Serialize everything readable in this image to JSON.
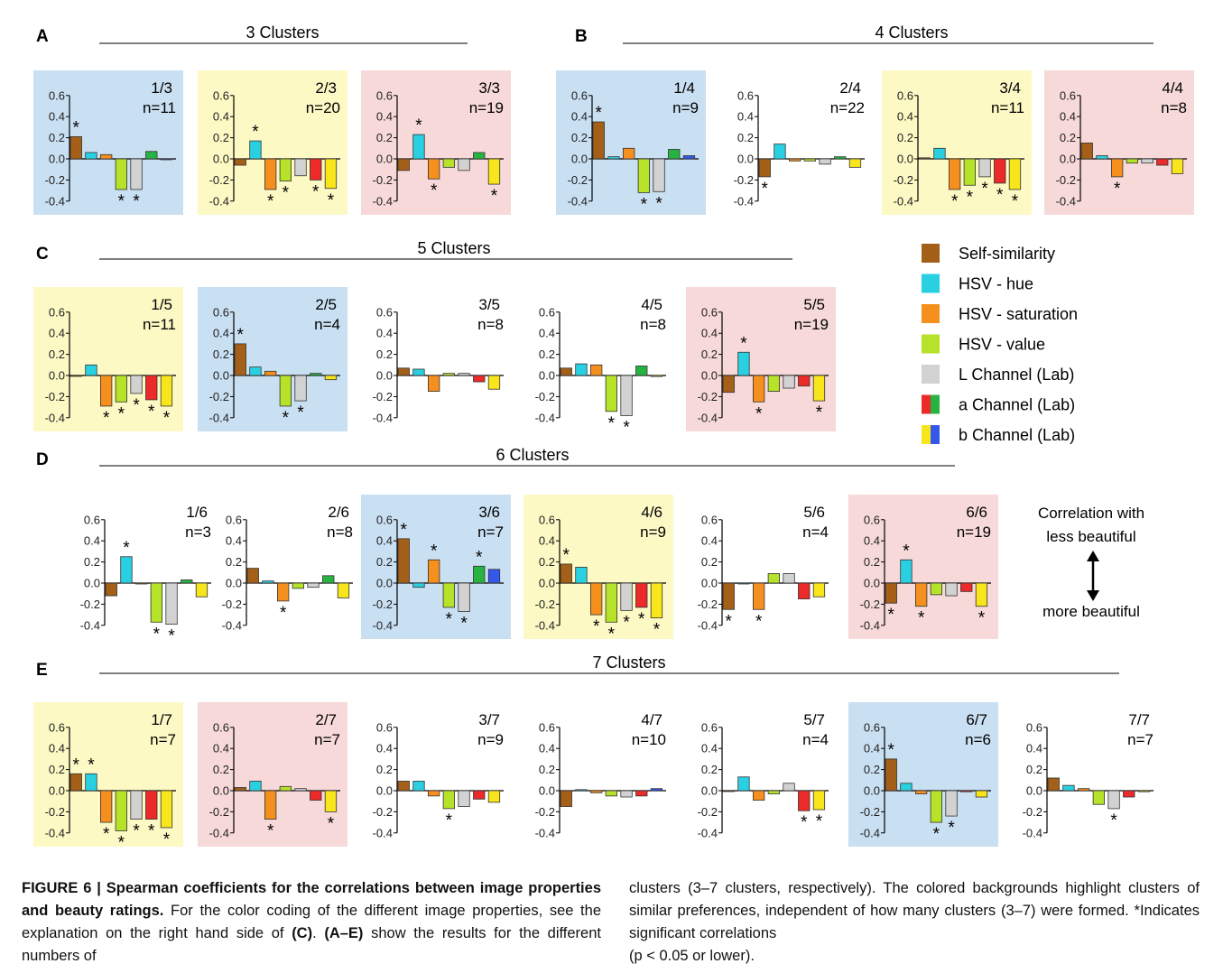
{
  "series_legend": [
    {
      "label": "Self-similarity",
      "colors": [
        "#a45f18"
      ]
    },
    {
      "label": "HSV - hue",
      "colors": [
        "#29d0e2"
      ]
    },
    {
      "label": "HSV - saturation",
      "colors": [
        "#f5901e"
      ]
    },
    {
      "label": "HSV - value",
      "colors": [
        "#b6e22a"
      ]
    },
    {
      "label": "L Channel (Lab)",
      "colors": [
        "#d2d2d2"
      ]
    },
    {
      "label": "a Channel (Lab)",
      "colors": [
        "#ec2a2a",
        "#27b341"
      ]
    },
    {
      "label": "b Channel (Lab)",
      "colors": [
        "#f9e51b",
        "#3458ea"
      ]
    }
  ],
  "direction_legend": {
    "top": "Correlation with",
    "top2": "less beautiful",
    "bottom": "more beautiful"
  },
  "colors": {
    "blue_bg": "#c9dff2",
    "yellow_bg": "#fcf9c4",
    "pink_bg": "#f7d9d9"
  },
  "sections": [
    {
      "letter": "A",
      "title": "3 Clusters"
    },
    {
      "letter": "B",
      "title": "4 Clusters"
    },
    {
      "letter": "C",
      "title": "5 Clusters"
    },
    {
      "letter": "D",
      "title": "6 Clusters"
    },
    {
      "letter": "E",
      "title": "7 Clusters"
    }
  ],
  "chart_data": {
    "type": "bar",
    "ylim": [
      -0.4,
      0.6
    ],
    "yticks": [
      "0.6",
      "0.4",
      "0.2",
      "0.0",
      "-0.2",
      "-0.4"
    ],
    "categories": [
      "Self-similarity",
      "HSV - hue",
      "HSV - saturation",
      "HSV - value",
      "L Channel (Lab)",
      "a Channel (Lab)",
      "b Channel (Lab)"
    ],
    "panels": [
      {
        "section": "A",
        "label": "1/3",
        "n": "n=11",
        "bg": "blue",
        "values": [
          0.21,
          0.06,
          0.04,
          -0.29,
          -0.29,
          0.07,
          0
        ],
        "sign": [
          1,
          0,
          0,
          1,
          1,
          0,
          0
        ],
        "a_sign": 1,
        "b_sign": 1
      },
      {
        "section": "A",
        "label": "2/3",
        "n": "n=20",
        "bg": "yellow",
        "values": [
          -0.06,
          0.17,
          -0.29,
          -0.21,
          -0.16,
          -0.2,
          -0.28
        ],
        "sign": [
          0,
          1,
          1,
          1,
          0,
          1,
          1
        ],
        "a_sign": -1,
        "b_sign": -1
      },
      {
        "section": "A",
        "label": "3/3",
        "n": "n=19",
        "bg": "pink",
        "values": [
          -0.11,
          0.23,
          -0.19,
          -0.08,
          -0.11,
          0.06,
          -0.24
        ],
        "sign": [
          0,
          1,
          1,
          0,
          0,
          0,
          1
        ],
        "a_sign": 1,
        "b_sign": -1
      },
      {
        "section": "B",
        "label": "1/4",
        "n": "n=9",
        "bg": "blue",
        "values": [
          0.35,
          0.02,
          0.1,
          -0.32,
          -0.31,
          0.09,
          0.03
        ],
        "sign": [
          1,
          0,
          0,
          1,
          1,
          0,
          0
        ],
        "a_sign": 1,
        "b_sign": 1
      },
      {
        "section": "B",
        "label": "2/4",
        "n": "n=22",
        "bg": "none",
        "values": [
          -0.17,
          0.14,
          -0.02,
          -0.02,
          -0.05,
          0.02,
          -0.08
        ],
        "sign": [
          1,
          0,
          0,
          0,
          0,
          0,
          0
        ],
        "a_sign": 1,
        "b_sign": -1
      },
      {
        "section": "B",
        "label": "3/4",
        "n": "n=11",
        "bg": "yellow",
        "values": [
          0.01,
          0.1,
          -0.29,
          -0.25,
          -0.17,
          -0.23,
          -0.29
        ],
        "sign": [
          0,
          0,
          1,
          1,
          1,
          1,
          1
        ],
        "a_sign": -1,
        "b_sign": -1
      },
      {
        "section": "B",
        "label": "4/4",
        "n": "n=8",
        "bg": "pink",
        "values": [
          0.15,
          0.03,
          -0.17,
          -0.04,
          -0.04,
          -0.06,
          -0.14
        ],
        "sign": [
          0,
          0,
          1,
          0,
          0,
          0,
          0
        ],
        "a_sign": -1,
        "b_sign": -1
      },
      {
        "section": "C",
        "label": "1/5",
        "n": "n=11",
        "bg": "yellow",
        "values": [
          0,
          0.1,
          -0.29,
          -0.25,
          -0.17,
          -0.23,
          -0.29
        ],
        "sign": [
          0,
          0,
          1,
          1,
          1,
          1,
          1
        ],
        "a_sign": -1,
        "b_sign": -1
      },
      {
        "section": "C",
        "label": "2/5",
        "n": "n=4",
        "bg": "blue",
        "values": [
          0.3,
          0.08,
          0.04,
          -0.29,
          -0.24,
          0.02,
          -0.04
        ],
        "sign": [
          1,
          0,
          0,
          1,
          1,
          0,
          0
        ],
        "a_sign": 1,
        "b_sign": -1
      },
      {
        "section": "C",
        "label": "3/5",
        "n": "n=8",
        "bg": "none",
        "values": [
          0.07,
          0.06,
          -0.15,
          0.02,
          0.02,
          -0.06,
          -0.13
        ],
        "sign": [
          0,
          0,
          0,
          0,
          0,
          0,
          0
        ],
        "a_sign": -1,
        "b_sign": -1
      },
      {
        "section": "C",
        "label": "4/5",
        "n": "n=8",
        "bg": "none",
        "values": [
          0.07,
          0.11,
          0.1,
          -0.34,
          -0.38,
          0.09,
          -0.01
        ],
        "sign": [
          0,
          0,
          0,
          1,
          1,
          0,
          0
        ],
        "a_sign": 1,
        "b_sign": -1
      },
      {
        "section": "C",
        "label": "5/5",
        "n": "n=19",
        "bg": "pink",
        "values": [
          -0.16,
          0.22,
          -0.25,
          -0.15,
          -0.12,
          -0.1,
          -0.24
        ],
        "sign": [
          0,
          1,
          1,
          0,
          0,
          0,
          1
        ],
        "a_sign": -1,
        "b_sign": -1
      },
      {
        "section": "D",
        "label": "1/6",
        "n": "n=3",
        "bg": "none",
        "values": [
          -0.12,
          0.25,
          0,
          -0.37,
          -0.39,
          0.03,
          -0.13
        ],
        "sign": [
          0,
          1,
          0,
          1,
          1,
          0,
          0
        ],
        "a_sign": 1,
        "b_sign": -1
      },
      {
        "section": "D",
        "label": "2/6",
        "n": "n=8",
        "bg": "none",
        "values": [
          0.14,
          0.02,
          -0.17,
          -0.05,
          -0.04,
          0.07,
          -0.14
        ],
        "sign": [
          0,
          0,
          1,
          0,
          0,
          0,
          0
        ],
        "a_sign": 1,
        "b_sign": -1
      },
      {
        "section": "D",
        "label": "3/6",
        "n": "n=7",
        "bg": "blue",
        "values": [
          0.42,
          -0.04,
          0.22,
          -0.23,
          -0.27,
          0.16,
          0.13
        ],
        "sign": [
          1,
          0,
          1,
          1,
          1,
          1,
          0
        ],
        "a_sign": 1,
        "b_sign": 1
      },
      {
        "section": "D",
        "label": "4/6",
        "n": "n=9",
        "bg": "yellow",
        "values": [
          0.18,
          0.15,
          -0.3,
          -0.37,
          -0.26,
          -0.23,
          -0.33
        ],
        "sign": [
          1,
          0,
          1,
          1,
          1,
          1,
          1
        ],
        "a_sign": -1,
        "b_sign": -1
      },
      {
        "section": "D",
        "label": "5/6",
        "n": "n=4",
        "bg": "none",
        "values": [
          -0.25,
          0,
          -0.25,
          0.09,
          0.09,
          -0.15,
          -0.13
        ],
        "sign": [
          1,
          0,
          1,
          0,
          0,
          0,
          0
        ],
        "a_sign": -1,
        "b_sign": -1
      },
      {
        "section": "D",
        "label": "6/6",
        "n": "n=19",
        "bg": "pink",
        "values": [
          -0.19,
          0.22,
          -0.22,
          -0.11,
          -0.12,
          -0.08,
          -0.22
        ],
        "sign": [
          1,
          1,
          1,
          0,
          0,
          0,
          1
        ],
        "a_sign": -1,
        "b_sign": -1
      },
      {
        "section": "E",
        "label": "1/7",
        "n": "n=7",
        "bg": "yellow",
        "values": [
          0.16,
          0.16,
          -0.3,
          -0.38,
          -0.27,
          -0.27,
          -0.35
        ],
        "sign": [
          1,
          1,
          1,
          1,
          1,
          1,
          1
        ],
        "a_sign": -1,
        "b_sign": -1
      },
      {
        "section": "E",
        "label": "2/7",
        "n": "n=7",
        "bg": "pink",
        "values": [
          0.03,
          0.09,
          -0.27,
          0.04,
          0.02,
          -0.09,
          -0.2
        ],
        "sign": [
          0,
          0,
          1,
          0,
          0,
          0,
          1
        ],
        "a_sign": -1,
        "b_sign": -1
      },
      {
        "section": "E",
        "label": "3/7",
        "n": "n=9",
        "bg": "none",
        "values": [
          0.09,
          0.09,
          -0.05,
          -0.17,
          -0.15,
          -0.08,
          -0.11
        ],
        "sign": [
          0,
          0,
          0,
          1,
          0,
          0,
          0
        ],
        "a_sign": -1,
        "b_sign": -1
      },
      {
        "section": "E",
        "label": "4/7",
        "n": "n=10",
        "bg": "none",
        "values": [
          -0.15,
          0.01,
          -0.02,
          -0.05,
          -0.06,
          -0.05,
          0.02
        ],
        "sign": [
          0,
          0,
          0,
          0,
          0,
          0,
          0
        ],
        "a_sign": -1,
        "b_sign": 1
      },
      {
        "section": "E",
        "label": "5/7",
        "n": "n=4",
        "bg": "none",
        "values": [
          0,
          0.13,
          -0.09,
          -0.03,
          0.07,
          -0.19,
          -0.18
        ],
        "sign": [
          0,
          0,
          0,
          0,
          0,
          1,
          1
        ],
        "a_sign": -1,
        "b_sign": -1
      },
      {
        "section": "E",
        "label": "6/7",
        "n": "n=6",
        "bg": "blue",
        "values": [
          0.3,
          0.07,
          -0.03,
          -0.3,
          -0.24,
          -0.01,
          -0.06
        ],
        "sign": [
          1,
          0,
          0,
          1,
          1,
          0,
          0
        ],
        "a_sign": -1,
        "b_sign": -1
      },
      {
        "section": "E",
        "label": "7/7",
        "n": "n=7",
        "bg": "none",
        "values": [
          0.12,
          0.05,
          0.02,
          -0.13,
          -0.17,
          -0.06,
          -0.01
        ],
        "sign": [
          0,
          0,
          0,
          0,
          1,
          0,
          0
        ],
        "a_sign": -1,
        "b_sign": -1
      }
    ]
  },
  "caption": {
    "fig_label": "FIGURE 6 | Spearman coefficients for the correlations between image properties and beauty ratings.",
    "p1": " For the color coding of the different image properties, see the explanation on the right hand side of ",
    "ref_c": "(C)",
    "p2": ". ",
    "ref_ae": "(A–E)",
    "p3": " show the results for the different numbers of",
    "right": "clusters (3–7 clusters, respectively). The colored backgrounds highlight clusters of similar preferences, independent of how many clusters (3–7) were formed. *Indicates significant correlations",
    "right_p": "(p < 0.05 or lower)."
  }
}
